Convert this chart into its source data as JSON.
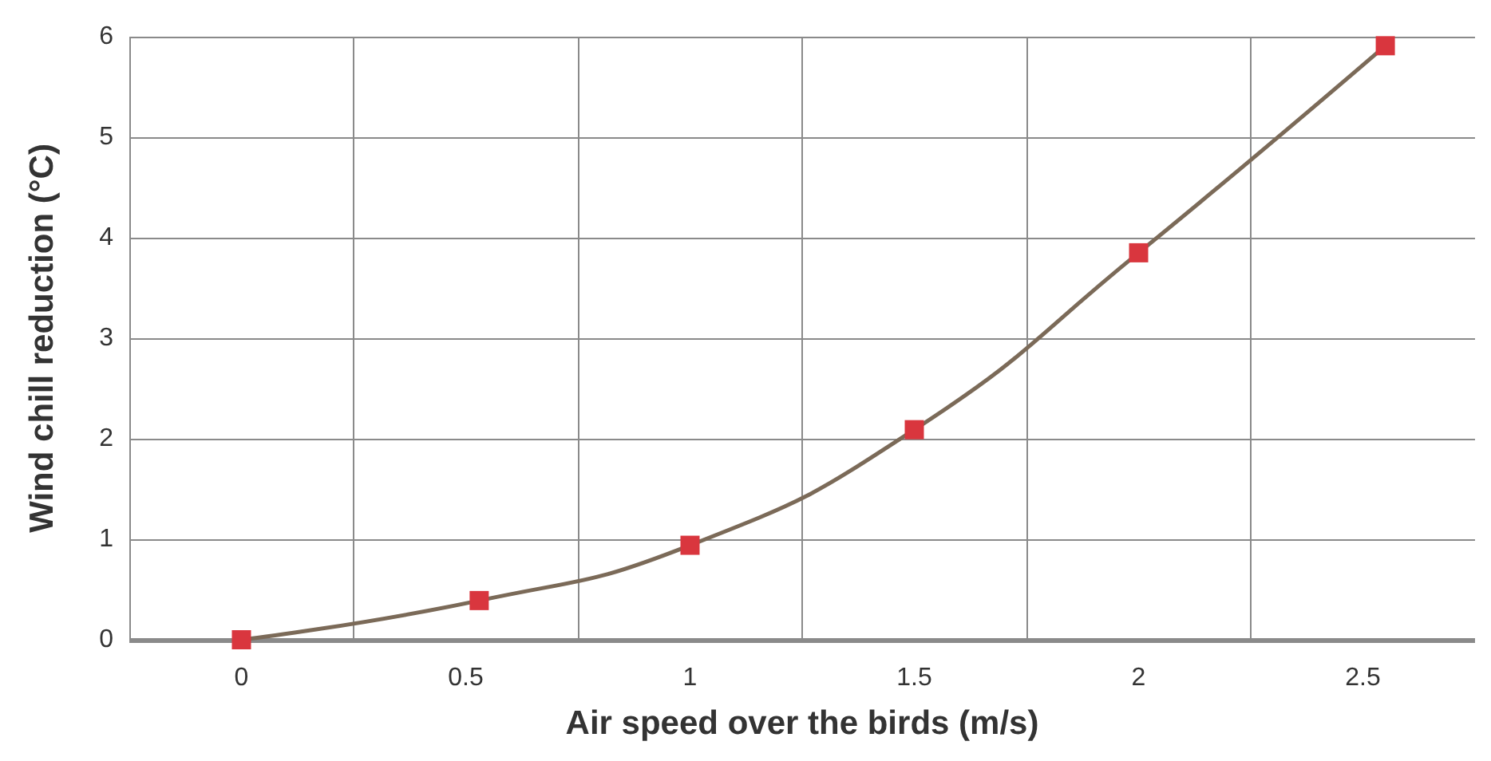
{
  "chart_data": {
    "type": "line",
    "xlabel": "Air speed over the birds (m/s)",
    "ylabel": "Wind chill reduction (°C)",
    "x": [
      0,
      0.53,
      1.0,
      1.5,
      2.0,
      2.55
    ],
    "series": [
      {
        "color": "#7b6a58",
        "colors": [
          "#d9363e",
          "#d9363e",
          "#d9363e",
          "#d9363e",
          "#d9363e",
          "#d9363e"
        ],
        "values": [
          0,
          0.39,
          0.94,
          2.09,
          3.85,
          5.91
        ]
      }
    ],
    "marker": "square",
    "line_style": "solid",
    "xlim": [
      -0.25,
      2.75
    ],
    "xticks": [
      {
        "value": -0.25,
        "label": null
      },
      0,
      {
        "value": 0.25,
        "label": null
      },
      0.5,
      {
        "value": 0.75,
        "label": null
      },
      1,
      {
        "value": 1.25,
        "label": null
      },
      1.5,
      {
        "value": 1.75,
        "label": null
      },
      2,
      {
        "value": 2.25,
        "label": null
      },
      2.5
    ],
    "ylim": [
      0,
      6
    ],
    "yticks": [
      0,
      1,
      2,
      3,
      4,
      5,
      6
    ],
    "grid": true
  }
}
